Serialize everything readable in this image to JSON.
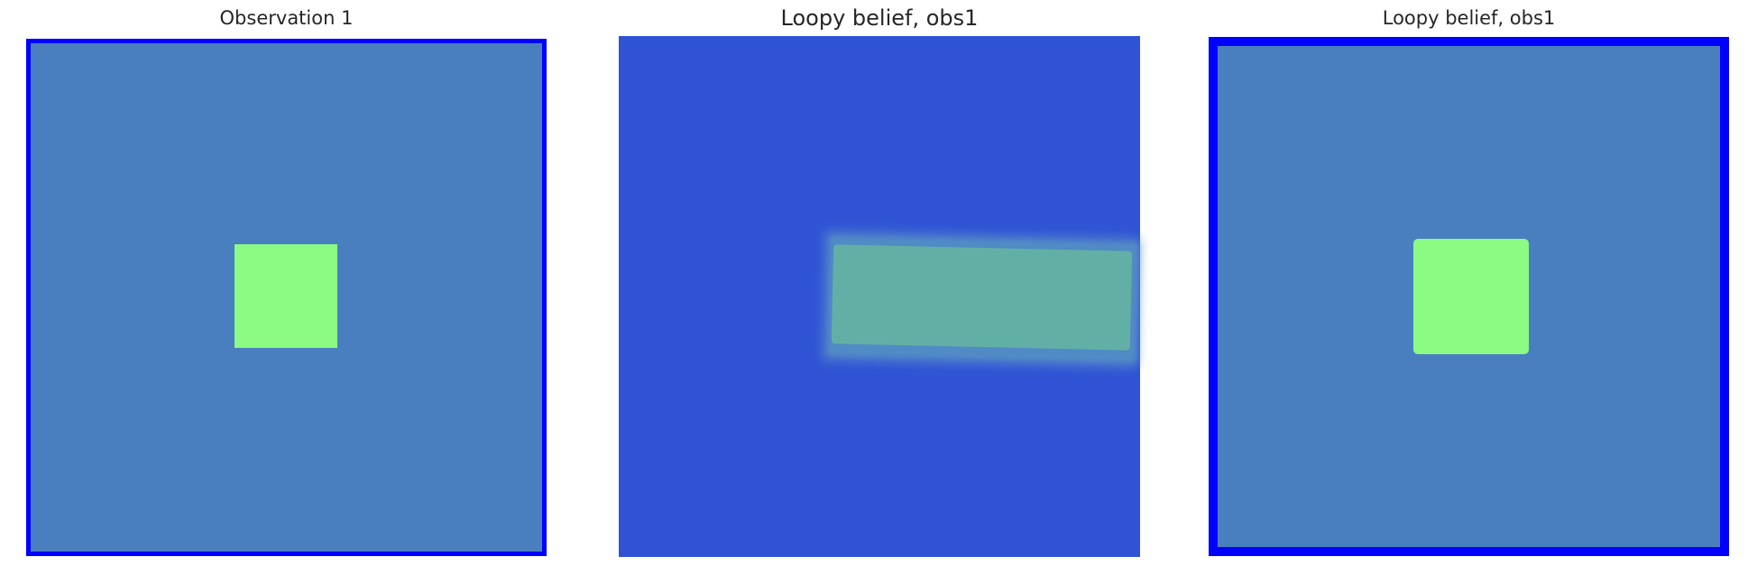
{
  "panels": [
    {
      "title": "Observation 1"
    },
    {
      "title": "Loopy belief, obs1"
    },
    {
      "title": "Loopy belief, obs1"
    }
  ],
  "colors": {
    "background_field": "#4a7fbf",
    "belief_field": "#2f53d4",
    "foreground_patch": "#8cfb84",
    "belief_patch": "#62b0a5",
    "border": "#0000ff"
  }
}
